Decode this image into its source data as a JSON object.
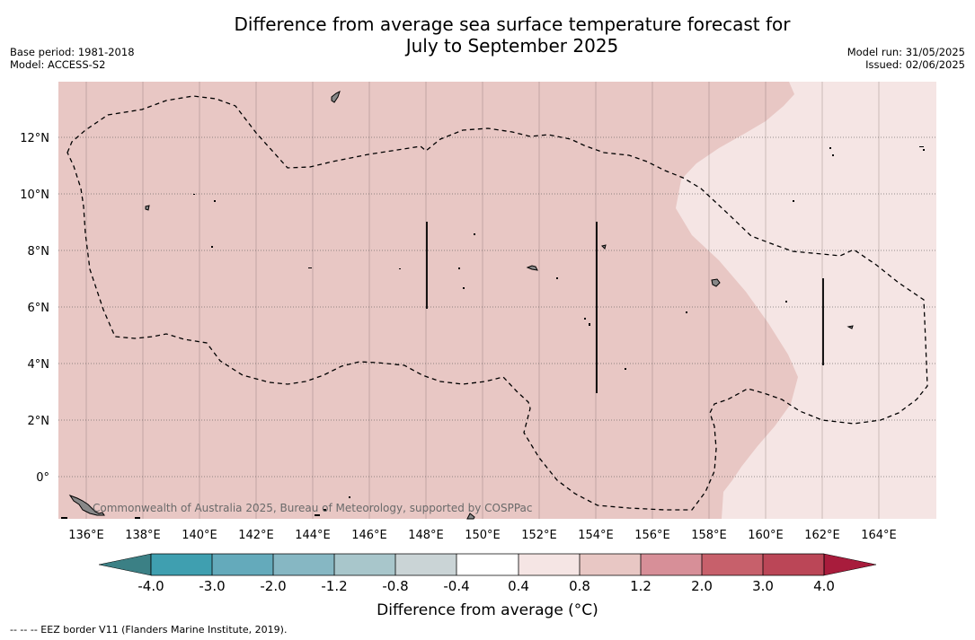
{
  "header": {
    "title_line1": "Difference from average sea surface temperature forecast for",
    "title_line2": "July to September 2025",
    "base_period": "Base period: 1981-2018",
    "model": "Model: ACCESS-S2",
    "model_run": "Model run: 31/05/2025",
    "issued": "Issued: 02/06/2025"
  },
  "map": {
    "lon_labels": [
      "136°E",
      "138°E",
      "140°E",
      "142°E",
      "144°E",
      "146°E",
      "148°E",
      "150°E",
      "152°E",
      "154°E",
      "156°E",
      "158°E",
      "160°E",
      "162°E",
      "164°E"
    ],
    "lat_labels": [
      "12°N",
      "10°N",
      "8°N",
      "6°N",
      "4°N",
      "2°N",
      "0°"
    ],
    "copyright": "Commonwealth of Australia 2025, Bureau of Meteorology, supported by COSPPac",
    "colors": {
      "anomaly_0_8_to_1_2": "#e8c7c4",
      "anomaly_0_4_to_0_8": "#f5e5e4",
      "land": "#888888"
    }
  },
  "colorbar": {
    "ticks": [
      "-4.0",
      "-3.0",
      "-2.0",
      "-1.2",
      "-0.8",
      "-0.4",
      "0.4",
      "0.8",
      "1.2",
      "2.0",
      "3.0",
      "4.0"
    ],
    "colors": [
      "#3f9fb0",
      "#64aabb",
      "#86b7c3",
      "#a8c6cb",
      "#cad4d6",
      "#ffffff",
      "#f5e5e4",
      "#e8c7c4",
      "#d78f98",
      "#c7606b",
      "#bb4657"
    ],
    "under_color": "#3b8085",
    "over_color": "#a81c3c",
    "label": "Difference from average (°C)"
  },
  "footnote": "--  --  -- EEZ border V11 (Flanders Marine Institute, 2019)."
}
